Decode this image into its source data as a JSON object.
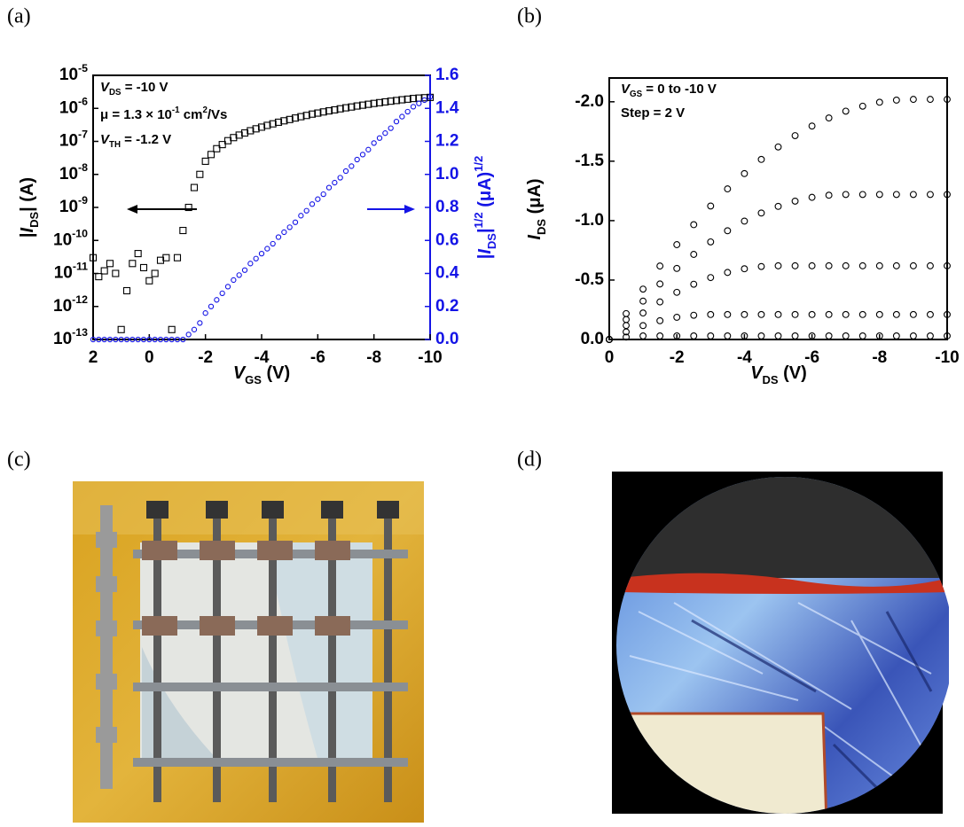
{
  "panel_labels": [
    "(a)",
    "(b)",
    "(c)",
    "(d)"
  ],
  "chart_data": [
    {
      "type": "scatter",
      "x": [
        2,
        1.8,
        1.6,
        1.4,
        1.2,
        1,
        0.8,
        0.6,
        0.4,
        0.2,
        0,
        -0.2,
        -0.4,
        -0.6,
        -0.8,
        -1,
        -1.2,
        -1.4,
        -1.6,
        -1.8,
        -2,
        -2.2,
        -2.4,
        -2.6,
        -2.8,
        -3,
        -3.2,
        -3.4,
        -3.6,
        -3.8,
        -4,
        -4.2,
        -4.4,
        -4.6,
        -4.8,
        -5,
        -5.2,
        -5.4,
        -5.6,
        -5.8,
        -6,
        -6.2,
        -6.4,
        -6.6,
        -6.8,
        -7,
        -7.2,
        -7.4,
        -7.6,
        -7.8,
        -8,
        -8.2,
        -8.4,
        -8.6,
        -8.8,
        -9,
        -9.2,
        -9.4,
        -9.6,
        -9.8,
        -10
      ],
      "series": [
        {
          "color": "#000000",
          "marker": "square",
          "values": [
            3e-11,
            8e-12,
            1.2e-11,
            2e-11,
            1e-11,
            2e-13,
            3e-12,
            2e-11,
            4e-11,
            1.5e-11,
            6e-12,
            1e-11,
            2.5e-11,
            3e-11,
            2e-13,
            3e-11,
            2e-10,
            1e-09,
            4e-09,
            1e-08,
            2.5e-08,
            4e-08,
            6e-08,
            8e-08,
            1.05e-07,
            1.3e-07,
            1.55e-07,
            1.8e-07,
            2.1e-07,
            2.4e-07,
            2.7e-07,
            3.05e-07,
            3.4e-07,
            3.8e-07,
            4.2e-07,
            4.6e-07,
            5.1e-07,
            5.6e-07,
            6.1e-07,
            6.7e-07,
            7.2e-07,
            7.8e-07,
            8.4e-07,
            9e-07,
            9.7e-07,
            1.04e-06,
            1.1e-06,
            1.18e-06,
            1.25e-06,
            1.33e-06,
            1.41e-06,
            1.49e-06,
            1.57e-06,
            1.65e-06,
            1.73e-06,
            1.82e-06,
            1.9e-06,
            1.99e-06,
            2.05e-06,
            2.1e-06,
            2.15e-06
          ]
        },
        {
          "color": "#1414e6",
          "marker": "circle",
          "axis": "y2",
          "values": [
            0,
            0,
            0,
            0,
            0,
            0,
            0,
            0,
            0,
            0,
            0,
            0,
            0,
            0,
            0,
            0,
            0,
            0.03,
            0.06,
            0.1,
            0.16,
            0.2,
            0.24,
            0.28,
            0.32,
            0.36,
            0.39,
            0.42,
            0.46,
            0.49,
            0.52,
            0.55,
            0.58,
            0.62,
            0.65,
            0.68,
            0.71,
            0.75,
            0.78,
            0.82,
            0.85,
            0.88,
            0.92,
            0.95,
            0.98,
            1.02,
            1.05,
            1.09,
            1.12,
            1.15,
            1.19,
            1.22,
            1.25,
            1.28,
            1.32,
            1.35,
            1.38,
            1.41,
            1.43,
            1.45,
            1.47
          ]
        }
      ],
      "xlim": [
        2,
        -10
      ],
      "xticks": [
        2,
        0,
        -2,
        -4,
        -6,
        -8,
        -10
      ],
      "ylog": true,
      "ylim": [
        1e-13,
        1e-05
      ],
      "yticks": [
        {
          "value": 1e-13,
          "label": "10",
          "sup": "-13"
        },
        {
          "value": 1e-12,
          "label": "10",
          "sup": "-12"
        },
        {
          "value": 1e-11,
          "label": "10",
          "sup": "-11"
        },
        {
          "value": 1e-10,
          "label": "10",
          "sup": "-10"
        },
        {
          "value": 1e-09,
          "label": "10",
          "sup": "-9"
        },
        {
          "value": 1e-08,
          "label": "10",
          "sup": "-8"
        },
        {
          "value": 1e-07,
          "label": "10",
          "sup": "-7"
        },
        {
          "value": 1e-06,
          "label": "10",
          "sup": "-6"
        },
        {
          "value": 1e-05,
          "label": "10",
          "sup": "-5"
        }
      ],
      "y2lim": [
        0,
        1.6
      ],
      "y2ticks": [
        {
          "value": 0,
          "label": "0.0"
        },
        0.2,
        0.4,
        0.6,
        0.8,
        {
          "value": 1,
          "label": "1.0"
        },
        1.2,
        1.4,
        1.6
      ],
      "y2color": "#1414e6",
      "xlabel": [
        {
          "text": "V",
          "italic": true
        },
        {
          "text": "GS",
          "script": "sub"
        },
        {
          "text": " (V)"
        }
      ],
      "ylabel": [
        {
          "text": "|"
        },
        {
          "text": "I",
          "italic": true
        },
        {
          "text": "DS",
          "script": "sub"
        },
        {
          "text": "| (A)"
        }
      ],
      "y2label": [
        {
          "text": "|"
        },
        {
          "text": "I",
          "italic": true
        },
        {
          "text": "DS",
          "script": "sub"
        },
        {
          "text": "|"
        },
        {
          "text": "1/2",
          "script": "sup"
        },
        {
          "text": " (μA)"
        },
        {
          "text": "1/2",
          "script": "sup"
        }
      ],
      "annotations": [
        [
          {
            "text": "V",
            "italic": true
          },
          {
            "text": "DS",
            "script": "sub"
          },
          {
            "text": " = -10 V"
          }
        ],
        [
          {
            "text": "μ = 1.3 × 10"
          },
          {
            "text": "-1",
            "script": "sup"
          },
          {
            "text": " cm"
          },
          {
            "text": "2",
            "script": "sup"
          },
          {
            "text": "/Vs"
          }
        ],
        [
          {
            "text": "V",
            "italic": true
          },
          {
            "text": "TH",
            "script": "sub"
          },
          {
            "text": " = -1.2 V"
          }
        ]
      ]
    },
    {
      "type": "scatter",
      "x": [
        0,
        -0.5,
        -1,
        -1.5,
        -2,
        -2.5,
        -3,
        -3.5,
        -4,
        -4.5,
        -5,
        -5.5,
        -6,
        -6.5,
        -7,
        -7.5,
        -8,
        -8.5,
        -9,
        -9.5,
        -10
      ],
      "series": [
        {
          "color": "#000000",
          "marker": "circle",
          "values": [
            0,
            -0.218,
            -0.424,
            -0.618,
            -0.798,
            -0.966,
            -1.123,
            -1.267,
            -1.396,
            -1.515,
            -1.62,
            -1.715,
            -1.796,
            -1.864,
            -1.921,
            -1.963,
            -1.996,
            -2.014,
            -2.02,
            -2.02,
            -2.02
          ]
        },
        {
          "color": "#000000",
          "marker": "circle",
          "values": [
            0,
            -0.168,
            -0.323,
            -0.467,
            -0.598,
            -0.716,
            -0.821,
            -0.915,
            -0.996,
            -1.064,
            -1.12,
            -1.164,
            -1.196,
            -1.214,
            -1.22,
            -1.22,
            -1.22,
            -1.22,
            -1.22,
            -1.22,
            -1.22
          ]
        },
        {
          "color": "#000000",
          "marker": "circle",
          "values": [
            0,
            -0.118,
            -0.223,
            -0.316,
            -0.397,
            -0.465,
            -0.521,
            -0.564,
            -0.595,
            -0.614,
            -0.62,
            -0.62,
            -0.62,
            -0.62,
            -0.62,
            -0.62,
            -0.62,
            -0.62,
            -0.62,
            -0.62,
            -0.62
          ]
        },
        {
          "color": "#000000",
          "marker": "circle",
          "values": [
            0,
            -0.064,
            -0.117,
            -0.158,
            -0.187,
            -0.204,
            -0.21,
            -0.21,
            -0.21,
            -0.21,
            -0.21,
            -0.21,
            -0.21,
            -0.21,
            -0.21,
            -0.21,
            -0.21,
            -0.21,
            -0.21,
            -0.21,
            -0.21
          ]
        },
        {
          "color": "#000000",
          "marker": "circle",
          "values": [
            0,
            -0.02,
            -0.03,
            -0.03,
            -0.03,
            -0.03,
            -0.03,
            -0.03,
            -0.03,
            -0.03,
            -0.03,
            -0.03,
            -0.03,
            -0.03,
            -0.03,
            -0.03,
            -0.03,
            -0.03,
            -0.03,
            -0.03,
            -0.03
          ]
        }
      ],
      "xlim": [
        0,
        -10
      ],
      "xticks": [
        0,
        -2,
        -4,
        -6,
        -8,
        -10
      ],
      "ylim": [
        0,
        -2.2
      ],
      "yticks": [
        {
          "value": 0,
          "label": "0.0"
        },
        -0.5,
        {
          "value": -1,
          "label": "-1.0"
        },
        -1.5,
        {
          "value": -2,
          "label": "-2.0"
        }
      ],
      "xlabel": [
        {
          "text": "V",
          "italic": true
        },
        {
          "text": "DS",
          "script": "sub"
        },
        {
          "text": " (V)"
        }
      ],
      "ylabel": [
        {
          "text": "I",
          "italic": true
        },
        {
          "text": "DS",
          "script": "sub"
        },
        {
          "text": " (μA)"
        }
      ],
      "annotations": [
        [
          {
            "text": "V",
            "italic": true
          },
          {
            "text": "GS",
            "script": "sub"
          },
          {
            "text": " = 0 to -10 V"
          }
        ],
        [
          {
            "text": "Step = 2 V"
          }
        ]
      ]
    }
  ]
}
